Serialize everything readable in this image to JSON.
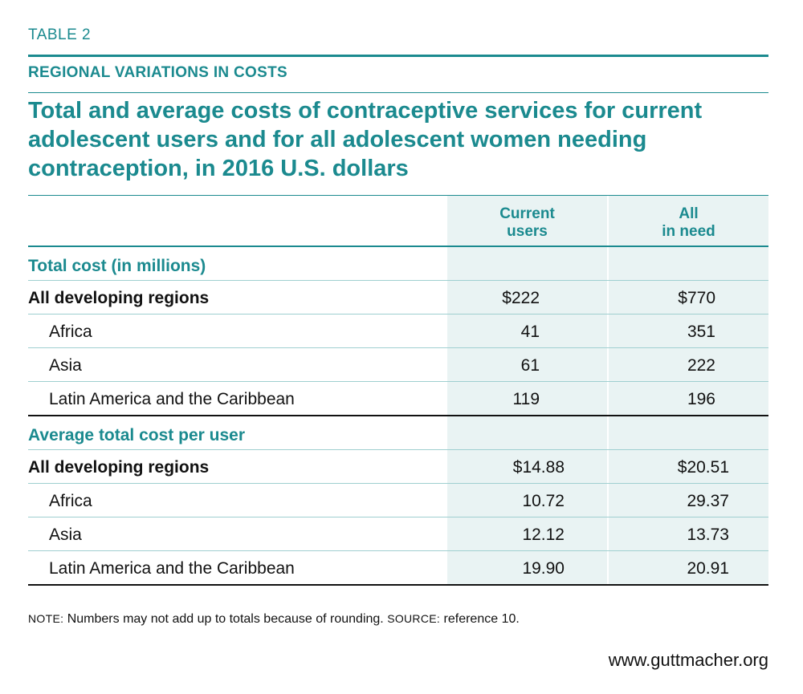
{
  "header": {
    "table_label": "TABLE 2",
    "section_heading": "REGIONAL VARIATIONS IN COSTS",
    "title": "Total and average costs of contraceptive services for current adolescent users and for all adolescent women needing contraception, in 2016 U.S. dollars"
  },
  "columns": {
    "current_users": {
      "line1": "Current",
      "line2": "users"
    },
    "all_in_need": {
      "line1": "All",
      "line2": "in need"
    }
  },
  "sections": [
    {
      "heading": "Total cost (in millions)",
      "rows": [
        {
          "label": "All developing regions",
          "current": "$222",
          "need": "$770",
          "kind": "total"
        },
        {
          "label": "Africa",
          "current": "41",
          "need": "351",
          "kind": "sub"
        },
        {
          "label": "Asia",
          "current": "61",
          "need": "222",
          "kind": "sub"
        },
        {
          "label": "Latin America and the Caribbean",
          "current": "119",
          "need": "196",
          "kind": "sub"
        }
      ]
    },
    {
      "heading": "Average total cost per user",
      "rows": [
        {
          "label": "All developing regions",
          "current": "$14.88",
          "need": "$20.51",
          "kind": "total"
        },
        {
          "label": "Africa",
          "current": "10.72",
          "need": "29.37",
          "kind": "sub"
        },
        {
          "label": "Asia",
          "current": "12.12",
          "need": "13.73",
          "kind": "sub"
        },
        {
          "label": "Latin America and the Caribbean",
          "current": "19.90",
          "need": "20.91",
          "kind": "sub"
        }
      ]
    }
  ],
  "footer": {
    "note_label": "NOTE:",
    "note_text": " Numbers may not add up to totals because of rounding. ",
    "source_label": "SOURCE:",
    "source_text": " reference 10.",
    "website": "www.guttmacher.org"
  },
  "colors": {
    "accent": "#1b8a8f",
    "column_shading": "#e9f3f3"
  }
}
